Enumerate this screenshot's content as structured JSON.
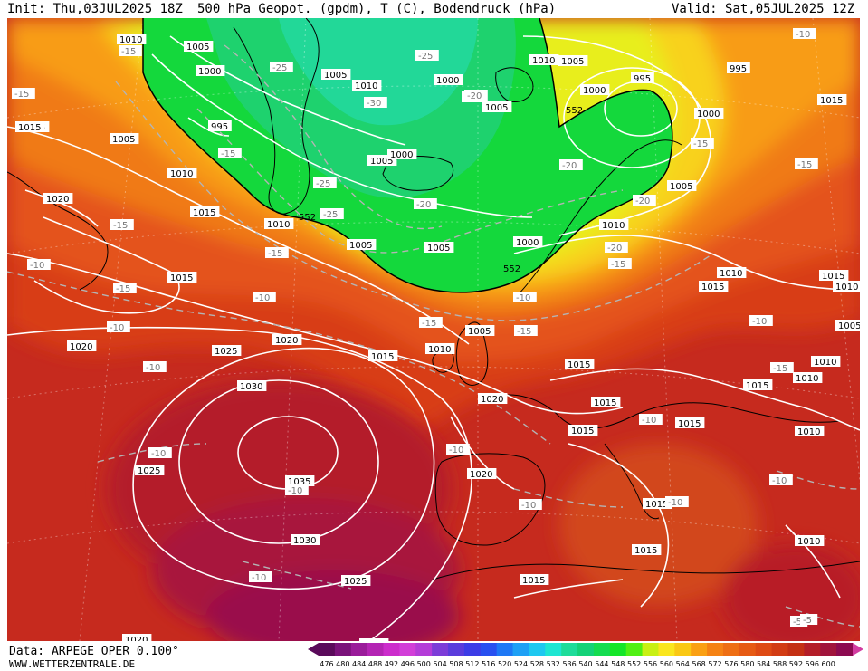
{
  "header": {
    "init": "Init: Thu,03JUL2025 18Z",
    "title": "500 hPa Geopot. (gpdm), T (C), Bodendruck (hPa)",
    "valid": "Valid: Sat,05JUL2025 12Z"
  },
  "footer": {
    "data_source": "Data: ARPEGE OPER 0.100°",
    "website": "WWW.WETTERZENTRALE.DE"
  },
  "legend": {
    "values": [
      "476",
      "480",
      "484",
      "488",
      "492",
      "496",
      "500",
      "504",
      "508",
      "512",
      "516",
      "520",
      "524",
      "528",
      "532",
      "536",
      "540",
      "544",
      "548",
      "552",
      "556",
      "560",
      "564",
      "568",
      "572",
      "576",
      "580",
      "584",
      "588",
      "592",
      "596",
      "600"
    ],
    "colors": [
      "#5a0a5a",
      "#7a127a",
      "#9a1c9a",
      "#b424b4",
      "#cc2ccc",
      "#d23ed8",
      "#b43cd8",
      "#7c3cd8",
      "#5a3cdc",
      "#3c3ce6",
      "#2850f0",
      "#1e78f5",
      "#1ea0f5",
      "#1ec8f0",
      "#1ee6d2",
      "#1edc9a",
      "#14d278",
      "#14dc50",
      "#14e628",
      "#50f014",
      "#c8f014",
      "#fae61e",
      "#fac814",
      "#faa014",
      "#f58214",
      "#ee6e14",
      "#e65a14",
      "#de4a14",
      "#d23c14",
      "#c43014",
      "#b41e28",
      "#a0143c",
      "#8c0a50"
    ]
  },
  "map": {
    "pressure_labels": [
      {
        "t": "1010"
      },
      {
        "t": "1005"
      },
      {
        "t": "1000"
      },
      {
        "t": "1005"
      },
      {
        "t": "1010"
      },
      {
        "t": "1000"
      },
      {
        "t": "1010"
      },
      {
        "t": "1005"
      },
      {
        "t": "995"
      },
      {
        "t": "1000"
      },
      {
        "t": "995"
      },
      {
        "t": "1015"
      },
      {
        "t": "1005"
      },
      {
        "t": "995"
      },
      {
        "t": "1005"
      },
      {
        "t": "1000"
      },
      {
        "t": "1005"
      },
      {
        "t": "1000"
      },
      {
        "t": "1010"
      },
      {
        "t": "1015"
      },
      {
        "t": "1020"
      },
      {
        "t": "1015"
      },
      {
        "t": "1010"
      },
      {
        "t": "1005"
      },
      {
        "t": "1005"
      },
      {
        "t": "1000"
      },
      {
        "t": "1010"
      },
      {
        "t": "1005"
      },
      {
        "t": "1015"
      },
      {
        "t": "1010"
      },
      {
        "t": "1015"
      },
      {
        "t": "1015"
      },
      {
        "t": "1010"
      },
      {
        "t": "1005"
      },
      {
        "t": "1020"
      },
      {
        "t": "1025"
      },
      {
        "t": "1020"
      },
      {
        "t": "1015"
      },
      {
        "t": "1010"
      },
      {
        "t": "1005"
      },
      {
        "t": "1015"
      },
      {
        "t": "1010"
      },
      {
        "t": "1030"
      },
      {
        "t": "1020"
      },
      {
        "t": "1015"
      },
      {
        "t": "1015"
      },
      {
        "t": "1015"
      },
      {
        "t": "1015"
      },
      {
        "t": "1010"
      },
      {
        "t": "1025"
      },
      {
        "t": "1035"
      },
      {
        "t": "1020"
      },
      {
        "t": "1015"
      },
      {
        "t": "1030"
      },
      {
        "t": "1015"
      },
      {
        "t": "1010"
      },
      {
        "t": "1025"
      },
      {
        "t": "1015"
      },
      {
        "t": "1020"
      },
      {
        "t": "1020"
      },
      {
        "t": "1015"
      },
      {
        "t": "1010"
      }
    ],
    "temp_labels": [
      {
        "t": "-15"
      },
      {
        "t": "-25"
      },
      {
        "t": "-25"
      },
      {
        "t": "-25"
      },
      {
        "t": "-30"
      },
      {
        "t": "-25"
      },
      {
        "t": "-15"
      },
      {
        "t": "-15"
      },
      {
        "t": "-15"
      },
      {
        "t": "-20"
      },
      {
        "t": "-25"
      },
      {
        "t": "-20"
      },
      {
        "t": "-20"
      },
      {
        "t": "-20"
      },
      {
        "t": "-20"
      },
      {
        "t": "-15"
      },
      {
        "t": "-15"
      },
      {
        "t": "-10"
      },
      {
        "t": "-10"
      },
      {
        "t": "-15"
      },
      {
        "t": "-10"
      },
      {
        "t": "-10"
      },
      {
        "t": "-15"
      },
      {
        "t": "-15"
      },
      {
        "t": "-10"
      },
      {
        "t": "-15"
      },
      {
        "t": "-10"
      },
      {
        "t": "-10"
      },
      {
        "t": "-10"
      },
      {
        "t": "-10"
      },
      {
        "t": "-10"
      },
      {
        "t": "-10"
      },
      {
        "t": "-10"
      },
      {
        "t": "-10"
      },
      {
        "t": "-5"
      },
      {
        "t": "-10"
      },
      {
        "t": "-5"
      },
      {
        "t": "-15"
      },
      {
        "t": "-10"
      },
      {
        "t": "-15"
      },
      {
        "t": "-5"
      }
    ],
    "geopot_labels": [
      {
        "t": "552"
      },
      {
        "t": "552"
      },
      {
        "t": "552"
      }
    ]
  }
}
